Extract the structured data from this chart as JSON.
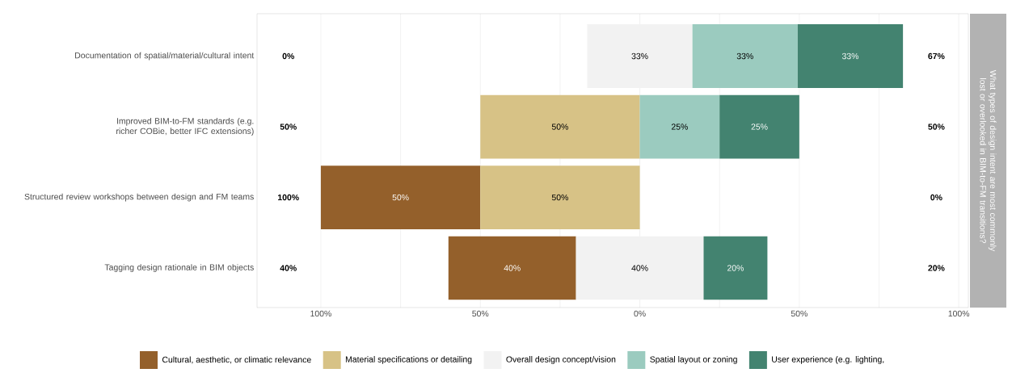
{
  "chart_data": {
    "type": "bar",
    "orientation": "horizontal",
    "title": "What types of design intent are most commonly lost or overlooked in BIM-to-FM transitions?",
    "categories": [
      "Documentation of spatial/material/cultural intent",
      "Improved BIM-to-FM standards (e.g. richer COBie, better IFC extensions)",
      "Structured review workshops between design and FM teams",
      "Tagging design rationale in BIM objects"
    ],
    "series": [
      {
        "name": "Cultural, aesthetic, or climatic relevance",
        "color": "#94602b",
        "base": [
          null,
          null,
          -100,
          -60
        ],
        "values": [
          null,
          null,
          50,
          40
        ],
        "value_labels": [
          null,
          null,
          "50%",
          "40%"
        ]
      },
      {
        "name": "Material specifications or detailing",
        "color": "#d7c286",
        "base": [
          null,
          -50,
          -50,
          null
        ],
        "values": [
          null,
          50,
          50,
          null
        ],
        "value_labels": [
          null,
          "50%",
          "50%",
          null
        ]
      },
      {
        "name": "Overall design concept/vision",
        "color": "#f2f2f2",
        "base": [
          -16.5,
          null,
          null,
          -20
        ],
        "values": [
          33,
          null,
          null,
          40
        ],
        "value_labels": [
          "33%",
          null,
          null,
          "40%"
        ]
      },
      {
        "name": "Spatial layout or zoning",
        "color": "#9bcbbf",
        "base": [
          16.5,
          0,
          null,
          null
        ],
        "values": [
          33,
          25,
          null,
          null
        ],
        "value_labels": [
          "33%",
          "25%",
          null,
          null
        ]
      },
      {
        "name": "User experience (e.g. lighting,",
        "color": "#438370",
        "base": [
          49.5,
          25,
          null,
          20
        ],
        "values": [
          33,
          25,
          null,
          20
        ],
        "value_labels": [
          "33%",
          "25%",
          null,
          "20%"
        ]
      }
    ],
    "xlim": [
      -120,
      103
    ],
    "xticks": [
      {
        "value": -100,
        "label": "100%"
      },
      {
        "value": -75,
        "label": null
      },
      {
        "value": -50,
        "label": "50%"
      },
      {
        "value": -25,
        "label": null
      },
      {
        "value": 0,
        "label": "0%"
      },
      {
        "value": 25,
        "label": null
      },
      {
        "value": 50,
        "label": "50%"
      },
      {
        "value": 75,
        "label": null
      },
      {
        "value": 100,
        "label": "100%"
      }
    ],
    "grid": "x",
    "legend": "bottom",
    "annotations": [
      "0%",
      "50%",
      "100%",
      "40%",
      "67%",
      "50%",
      "0%",
      "20%"
    ]
  }
}
